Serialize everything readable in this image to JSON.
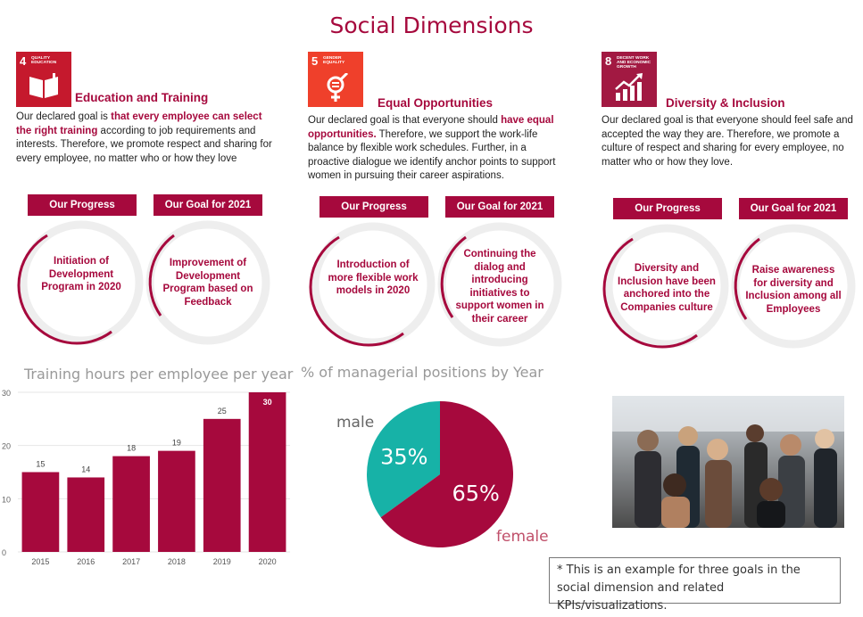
{
  "page_title": "Social Dimensions",
  "columns": [
    {
      "sdg": {
        "number": "4",
        "label": "QUALITY EDUCATION",
        "color": "#c5192d",
        "icon": "book-icon"
      },
      "title": "Education and Training",
      "text_pre": "Our declared goal is ",
      "text_highlight": "that every employee can select the right training",
      "text_post": " according to job requirements and interests. Therefore, we promote respect and sharing for every employee, no matter who or how they love",
      "progress_label": "Our Progress",
      "goal_label": "Our Goal for 2021",
      "progress_text": "Initiation of Development Program in 2020",
      "goal_text": "Improvement of Development Program based on Feedback"
    },
    {
      "sdg": {
        "number": "5",
        "label": "GENDER EQUALITY",
        "color": "#ef402b",
        "icon": "gender-equality-icon"
      },
      "title": "Equal Opportunities",
      "text_pre": "Our declared goal is that everyone should ",
      "text_highlight": "have equal opportunities.",
      "text_post": " Therefore, we support the work-life balance by flexible work schedules. Further, in a proactive dialogue we identify anchor points to support women in pursuing their career aspirations.",
      "progress_label": "Our Progress",
      "goal_label": "Our Goal for 2021",
      "progress_text": "Introduction of more flexible work models in 2020",
      "goal_text": "Continuing the dialog and introducing initiatives to support women in their career"
    },
    {
      "sdg": {
        "number": "8",
        "label": "DECENT WORK AND ECONOMIC GROWTH",
        "color": "#a21942",
        "icon": "growth-chart-icon"
      },
      "title": "Diversity & Inclusion",
      "text_pre": "Our declared goal is that everyone should feel safe and accepted the way they are. Therefore, we promote a culture of respect and sharing for every employee, no matter who or how they love.",
      "text_highlight": "",
      "text_post": "",
      "progress_label": "Our Progress",
      "goal_label": "Our Goal for 2021",
      "progress_text": "Diversity and Inclusion have been anchored into the Companies culture",
      "goal_text": "Raise awareness for diversity and Inclusion among all Employees"
    }
  ],
  "colors": {
    "accent": "#a6093d",
    "teal": "#17b2a7",
    "ring_bg": "#eeeeee"
  },
  "chart_data": [
    {
      "type": "bar",
      "title": "Training hours per employee per year",
      "categories": [
        "2015",
        "2016",
        "2017",
        "2018",
        "2019",
        "2020"
      ],
      "values": [
        15,
        14,
        18,
        19,
        25,
        30
      ],
      "yticks": [
        0,
        10,
        20,
        30
      ],
      "ylim": [
        0,
        30
      ],
      "grid": true,
      "color": "#a6093d"
    },
    {
      "type": "pie",
      "title": "% of managerial positions by Year",
      "slices": [
        {
          "label": "female",
          "value": 65,
          "display": "65%",
          "color": "#a6093d"
        },
        {
          "label": "male",
          "value": 35,
          "display": "35%",
          "color": "#17b2a7"
        }
      ]
    }
  ],
  "photo_icon": "people-networking-photo",
  "footnote": "* This is an example for three goals in the social dimension and related KPIs/visualizations."
}
